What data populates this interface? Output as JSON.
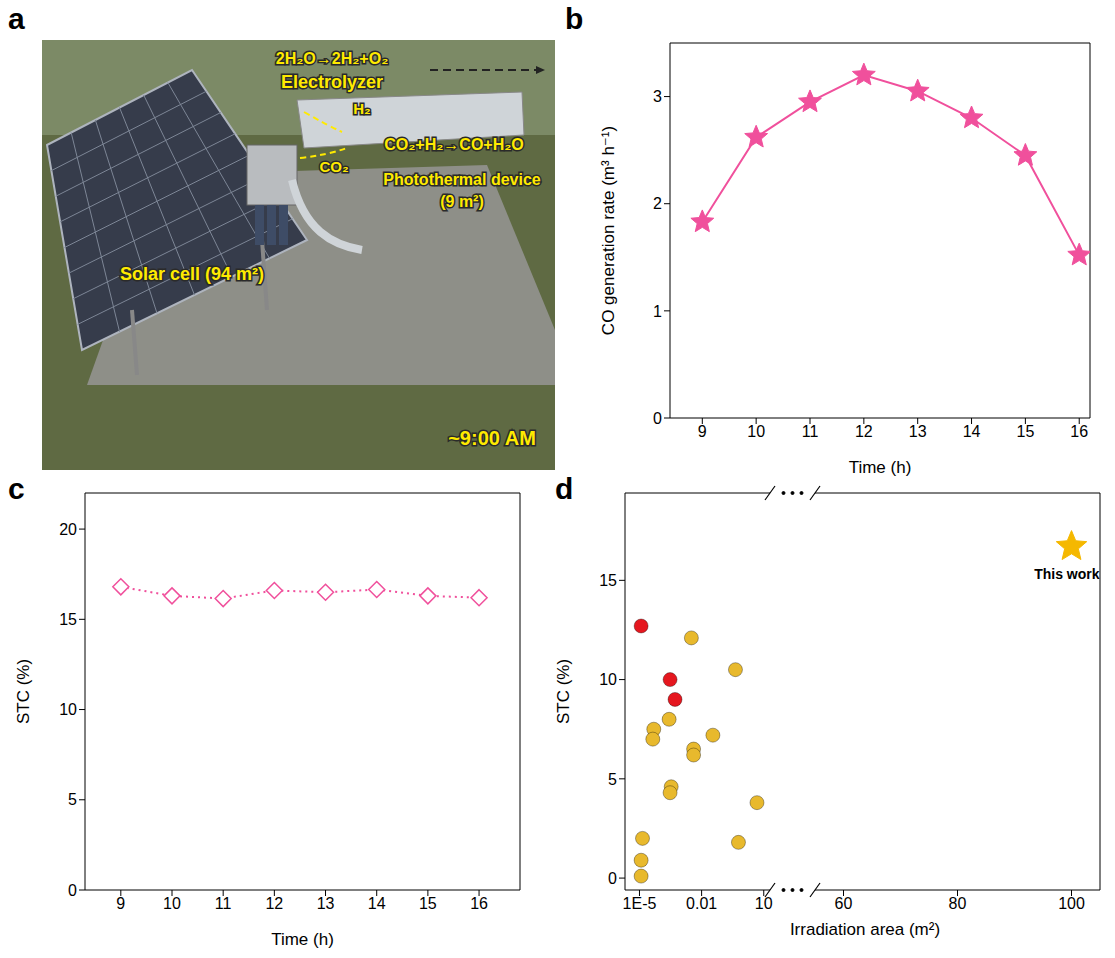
{
  "photo": {
    "panel": "a",
    "reaction_electrolyzer": "2H₂O→2H₂+O₂",
    "electrolyzer": "Electrolyzer",
    "gas_h2": "H₂",
    "gas_co2": "CO₂",
    "reaction_photothermal": "CO₂+H₂→CO+H₂O",
    "photothermal_device": [
      "Photothermal device",
      "(9 m²)"
    ],
    "solar_cell": "Solar cell (94 m²)",
    "time": "~9:00 AM"
  },
  "chart_data": [
    {
      "panel": "b",
      "type": "line",
      "x": [
        9,
        10,
        11,
        12,
        13,
        14,
        15,
        16
      ],
      "values": [
        1.83,
        2.62,
        2.95,
        3.2,
        3.05,
        2.8,
        2.45,
        1.52
      ],
      "color": "#f0509c",
      "marker": "star",
      "line_style": "solid",
      "xlabel": "Time (h)",
      "ylabel": "CO generation rate (m³ h⁻¹)",
      "xlim": [
        8.4,
        16.2
      ],
      "xticks": [
        9,
        10,
        11,
        12,
        13,
        14,
        15,
        16
      ],
      "ylim": [
        0,
        3.5
      ],
      "yticks": [
        0,
        1,
        2,
        3
      ]
    },
    {
      "panel": "c",
      "type": "line",
      "x": [
        9,
        10,
        11,
        12,
        13,
        14,
        15,
        16
      ],
      "values": [
        16.8,
        16.3,
        16.15,
        16.6,
        16.5,
        16.65,
        16.3,
        16.2
      ],
      "color": "#f0509c",
      "marker": "diamond-open",
      "line_style": "dotted",
      "xlabel": "Time (h)",
      "ylabel": "STC (%)",
      "xlim": [
        8.3,
        16.8
      ],
      "xticks": [
        9,
        10,
        11,
        12,
        13,
        14,
        15,
        16
      ],
      "ylim": [
        0,
        22
      ],
      "yticks": [
        0,
        5,
        10,
        15,
        20
      ]
    },
    {
      "panel": "d",
      "type": "scatter",
      "xlabel": "Irradiation area (m²)",
      "ylabel": "STC (%)",
      "ylim": [
        -0.6,
        19.4
      ],
      "yticks": [
        0,
        5,
        10,
        15
      ],
      "x_segments": [
        {
          "xlim": [
            2e-06,
            20
          ],
          "xticks": [
            {
              "value": 1e-05,
              "label": "1E-5"
            },
            0.01,
            10
          ],
          "log": true
        },
        {
          "xlim": [
            55,
            105
          ],
          "xticks": [
            60,
            80,
            100
          ]
        }
      ],
      "series": [
        {
          "color": "#e5171f",
          "marker": "circle",
          "x": [
            1.2e-05,
            0.0003,
            0.00052
          ],
          "values": [
            12.7,
            10.0,
            9.0
          ]
        },
        {
          "color": "#e8b92d",
          "marker": "circle",
          "x": [
            1.4e-05,
            1.2e-05,
            1.2e-05,
            4.9e-05,
            4.4e-05,
            0.00027,
            0.00034,
            0.0003,
            0.0032,
            0.0041,
            0.0041,
            0.035,
            0.43,
            0.6,
            4.7
          ],
          "values": [
            2.0,
            0.9,
            0.1,
            7.5,
            7.0,
            8.0,
            4.6,
            4.3,
            12.1,
            6.5,
            6.2,
            7.2,
            10.5,
            1.8,
            3.8
          ]
        },
        {
          "color": "#f5b800",
          "marker": "star",
          "x": [
            100
          ],
          "values": [
            16.7
          ],
          "label": "This work"
        }
      ]
    }
  ]
}
